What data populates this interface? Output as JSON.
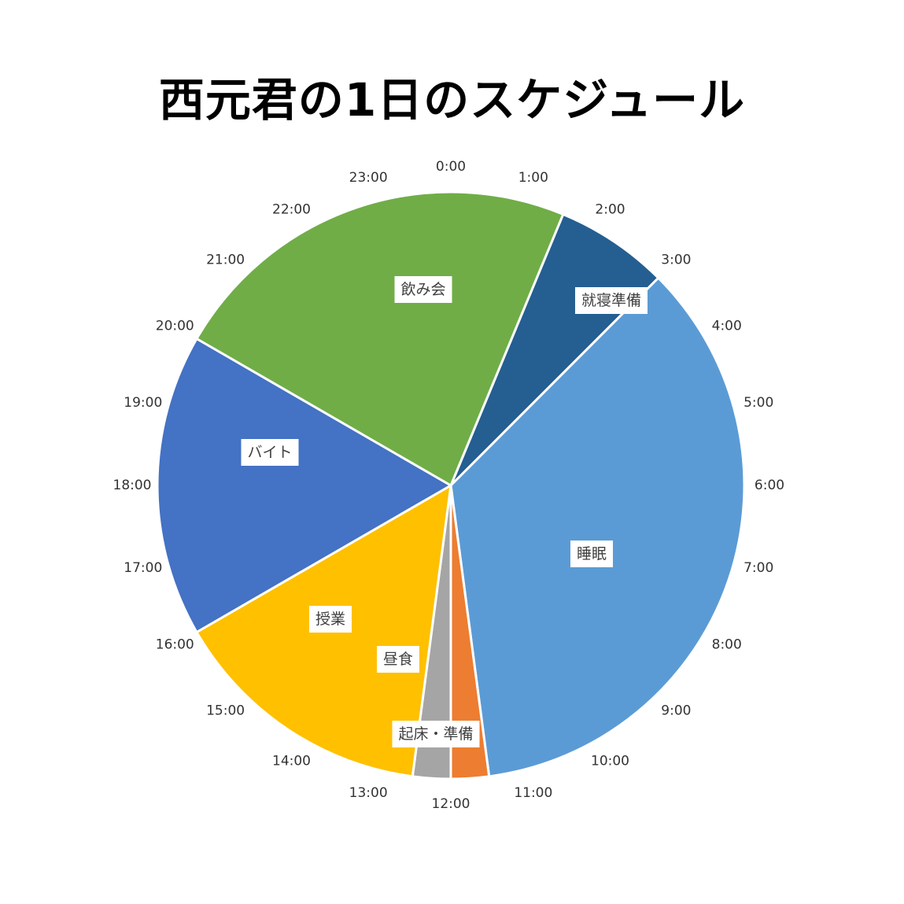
{
  "chart_data": {
    "type": "pie",
    "title": "西元君の1日のスケジュール",
    "unit": "hours",
    "start_time": "0:00",
    "slices": [
      {
        "label": "就寝準備",
        "start": 1.5,
        "end": 3.0,
        "color": "#255E91"
      },
      {
        "label": "睡眠",
        "start": 3.0,
        "end": 11.5,
        "color": "#5B9BD5"
      },
      {
        "label": "起床・準備",
        "start": 11.5,
        "end": 12.0,
        "color": "#ED7D31"
      },
      {
        "label": "昼食",
        "start": 12.0,
        "end": 12.5,
        "color": "#A5A5A5"
      },
      {
        "label": "授業",
        "start": 12.5,
        "end": 16.0,
        "color": "#FFC000"
      },
      {
        "label": "バイト",
        "start": 16.0,
        "end": 20.0,
        "color": "#4472C4"
      },
      {
        "label": "飲み会",
        "start": 20.0,
        "end": 25.5,
        "color": "#70AD47"
      }
    ],
    "hour_labels": [
      "0:00",
      "1:00",
      "2:00",
      "3:00",
      "4:00",
      "5:00",
      "6:00",
      "7:00",
      "8:00",
      "9:00",
      "10:00",
      "11:00",
      "12:00",
      "13:00",
      "14:00",
      "15:00",
      "16:00",
      "17:00",
      "18:00",
      "19:00",
      "20:00",
      "21:00",
      "22:00",
      "23:00"
    ],
    "legend": "none"
  }
}
